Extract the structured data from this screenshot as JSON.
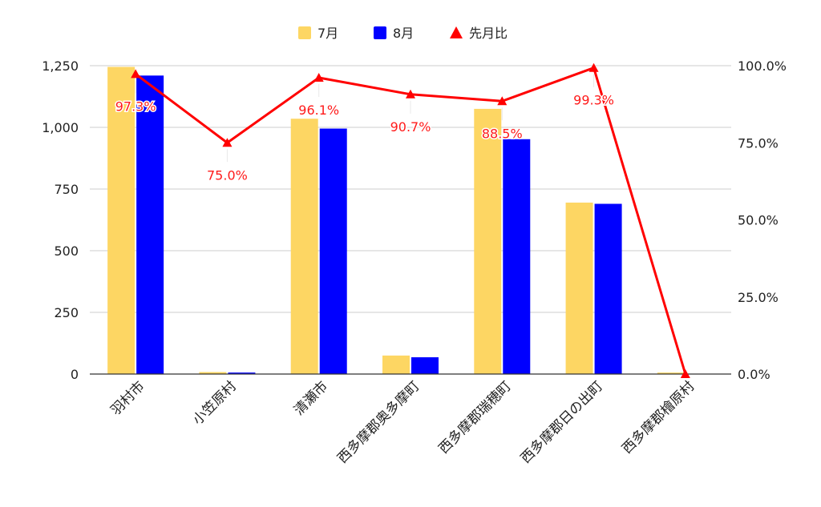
{
  "chart_data": {
    "type": "bar",
    "categories": [
      "羽村市",
      "小笠原村",
      "清瀬市",
      "西多摩郡奥多摩町",
      "西多摩郡瑞穂町",
      "西多摩郡日の出町",
      "西多摩郡檜原村"
    ],
    "series": [
      {
        "name": "7月",
        "type": "bar",
        "axis": "left",
        "color": "#fdd663",
        "values": [
          1245,
          8,
          1035,
          75,
          1075,
          695,
          6
        ]
      },
      {
        "name": "8月",
        "type": "bar",
        "axis": "left",
        "color": "#0000ff",
        "values": [
          1210,
          6,
          995,
          68,
          952,
          690,
          0
        ]
      },
      {
        "name": "先月比",
        "type": "line",
        "marker": "triangle",
        "axis": "right",
        "color": "#ff0000",
        "values": [
          97.3,
          75.0,
          96.1,
          90.7,
          88.5,
          99.3,
          0.0
        ],
        "data_labels": [
          "97.3%",
          "75.0%",
          "96.1%",
          "90.7%",
          "88.5%",
          "99.3%",
          ""
        ]
      }
    ],
    "y_left": {
      "min": 0,
      "max": 1250,
      "ticks": [
        "0",
        "250",
        "500",
        "750",
        "1,000",
        "1,250"
      ]
    },
    "y_right": {
      "min": 0,
      "max": 100,
      "ticks": [
        "0.0%",
        "25.0%",
        "50.0%",
        "75.0%",
        "100.0%"
      ]
    },
    "legend_position": "top",
    "grid": true,
    "title": "",
    "xlabel": "",
    "ylabel": ""
  }
}
